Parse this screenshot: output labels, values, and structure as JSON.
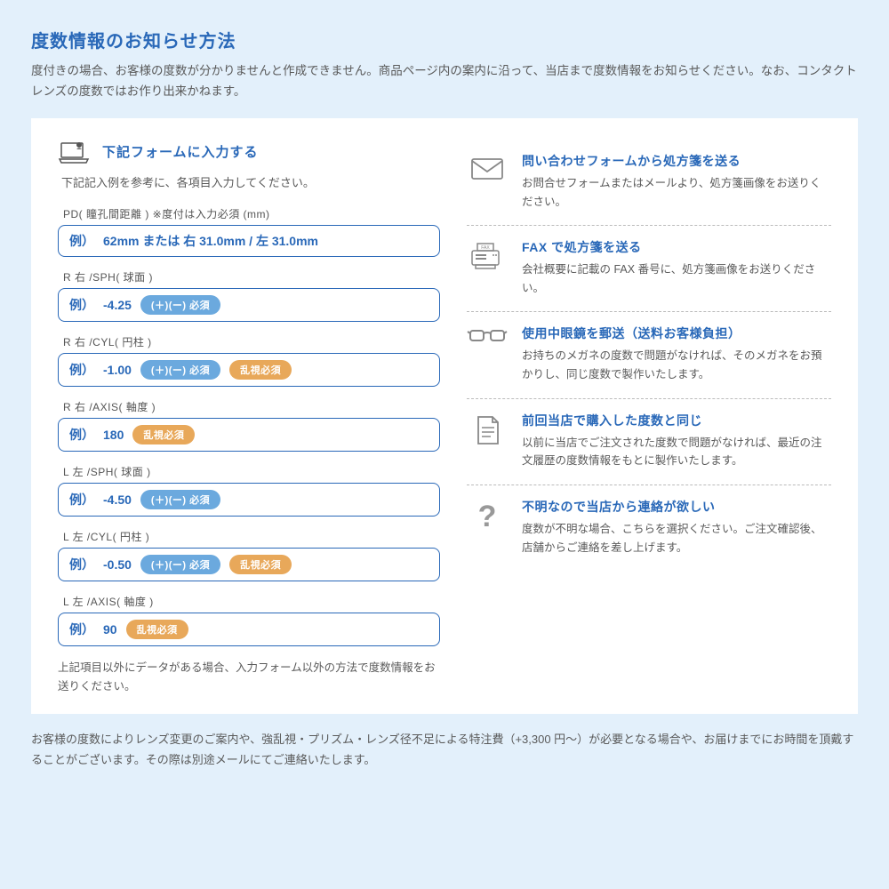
{
  "title": "度数情報のお知らせ方法",
  "description": "度付きの場合、お客様の度数が分かりませんと作成できません。商品ページ内の案内に沿って、当店まで度数情報をお知らせください。なお、コンタクトレンズの度数ではお作り出来かねます。",
  "form": {
    "title": "下記フォームに入力する",
    "subtitle": "下記記入例を参考に、各項目入力してください。",
    "note": "上記項目以外にデータがある場合、入力フォーム以外の方法で度数情報をお送りください。",
    "fields": [
      {
        "label": "PD( 瞳孔間距離 ) ※度付は入力必須 (mm)",
        "prefix": "例）",
        "value": "62mm または 右 31.0mm / 左 31.0mm",
        "badges": []
      },
      {
        "label": "R 右 /SPH( 球面 )",
        "prefix": "例）",
        "value": "-4.25",
        "badges": [
          {
            "text": "(＋)(ー) 必須",
            "type": "blue"
          }
        ]
      },
      {
        "label": "R 右 /CYL( 円柱 )",
        "prefix": "例）",
        "value": "-1.00",
        "badges": [
          {
            "text": "(＋)(ー) 必須",
            "type": "blue"
          },
          {
            "text": "乱視必須",
            "type": "orange"
          }
        ]
      },
      {
        "label": "R 右 /AXIS( 軸度 )",
        "prefix": "例）",
        "value": "180",
        "badges": [
          {
            "text": "乱視必須",
            "type": "orange"
          }
        ]
      },
      {
        "label": "L 左 /SPH( 球面 )",
        "prefix": "例）",
        "value": "-4.50",
        "badges": [
          {
            "text": "(＋)(ー) 必須",
            "type": "blue"
          }
        ]
      },
      {
        "label": "L 左 /CYL( 円柱 )",
        "prefix": "例）",
        "value": "-0.50",
        "badges": [
          {
            "text": "(＋)(ー) 必須",
            "type": "blue"
          },
          {
            "text": "乱視必須",
            "type": "orange"
          }
        ]
      },
      {
        "label": "L 左 /AXIS( 軸度 )",
        "prefix": "例）",
        "value": "90",
        "badges": [
          {
            "text": "乱視必須",
            "type": "orange"
          }
        ]
      }
    ]
  },
  "methods": [
    {
      "icon": "mail",
      "title": "問い合わせフォームから処方箋を送る",
      "desc": "お問合せフォームまたはメールより、処方箋画像をお送りください。"
    },
    {
      "icon": "fax",
      "title": "FAX で処方箋を送る",
      "desc": "会社概要に記載の FAX 番号に、処方箋画像をお送りください。"
    },
    {
      "icon": "glasses",
      "title": "使用中眼鏡を郵送（送料お客様負担）",
      "desc": "お持ちのメガネの度数で問題がなければ、そのメガネをお預かりし、同じ度数で製作いたします。"
    },
    {
      "icon": "doc",
      "title": "前回当店で購入した度数と同じ",
      "desc": "以前に当店でご注文された度数で問題がなければ、最近の注文履歴の度数情報をもとに製作いたします。"
    },
    {
      "icon": "question",
      "title": "不明なので当店から連絡が欲しい",
      "desc": "度数が不明な場合、こちらを選択ください。ご注文確認後、店舗からご連絡を差し上げます。"
    }
  ],
  "footer": "お客様の度数によりレンズ変更のご案内や、強乱視・プリズム・レンズ径不足による特注費（+3,300 円〜）が必要となる場合や、お届けまでにお時間を頂戴することがございます。その際は別途メールにてご連絡いたします。",
  "colors": {
    "bg": "#e3f0fb",
    "accent": "#2968b8",
    "text": "#5a5a5a",
    "badge_blue": "#6ba9de",
    "badge_orange": "#e8a85a",
    "field_border": "#2968b8",
    "divider": "#bbb"
  }
}
